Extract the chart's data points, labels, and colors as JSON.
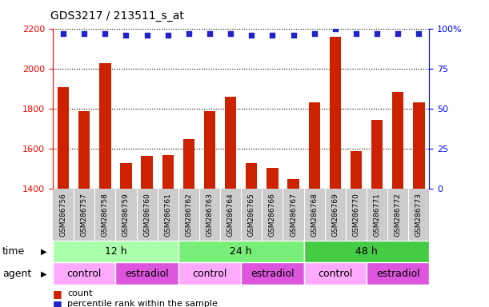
{
  "title": "GDS3217 / 213511_s_at",
  "samples": [
    "GSM286756",
    "GSM286757",
    "GSM286758",
    "GSM286759",
    "GSM286760",
    "GSM286761",
    "GSM286762",
    "GSM286763",
    "GSM286764",
    "GSM286765",
    "GSM286766",
    "GSM286767",
    "GSM286768",
    "GSM286769",
    "GSM286770",
    "GSM286771",
    "GSM286772",
    "GSM286773"
  ],
  "counts": [
    1910,
    1790,
    2030,
    1530,
    1565,
    1570,
    1650,
    1790,
    1860,
    1530,
    1505,
    1450,
    1835,
    2160,
    1590,
    1745,
    1885,
    1835
  ],
  "percentiles": [
    97,
    97,
    97,
    96,
    96,
    96,
    97,
    97,
    97,
    96,
    96,
    96,
    97,
    100,
    97,
    97,
    97,
    97
  ],
  "bar_color": "#cc2200",
  "dot_color": "#2222cc",
  "ylim_left": [
    1400,
    2200
  ],
  "ylim_right": [
    0,
    100
  ],
  "left_ticks": [
    1400,
    1600,
    1800,
    2000,
    2200
  ],
  "right_ticks": [
    0,
    25,
    50,
    75,
    100
  ],
  "right_tick_labels": [
    "0",
    "25",
    "50",
    "75",
    "100%"
  ],
  "time_groups": [
    {
      "label": "12 h",
      "start": 0,
      "end": 6,
      "color": "#aaffaa"
    },
    {
      "label": "24 h",
      "start": 6,
      "end": 12,
      "color": "#77ee77"
    },
    {
      "label": "48 h",
      "start": 12,
      "end": 18,
      "color": "#44cc44"
    }
  ],
  "agent_groups": [
    {
      "label": "control",
      "start": 0,
      "end": 3,
      "color": "#ffaaff"
    },
    {
      "label": "estradiol",
      "start": 3,
      "end": 6,
      "color": "#dd55dd"
    },
    {
      "label": "control",
      "start": 6,
      "end": 9,
      "color": "#ffaaff"
    },
    {
      "label": "estradiol",
      "start": 9,
      "end": 12,
      "color": "#dd55dd"
    },
    {
      "label": "control",
      "start": 12,
      "end": 15,
      "color": "#ffaaff"
    },
    {
      "label": "estradiol",
      "start": 15,
      "end": 18,
      "color": "#dd55dd"
    }
  ],
  "xtick_bg": "#cccccc",
  "fig_bg": "#ffffff",
  "left_axis_color": "red",
  "right_axis_color": "blue",
  "grid_linestyle": "dotted",
  "grid_color": "#000000",
  "title_fontsize": 10,
  "bar_width": 0.55,
  "dot_size": 22,
  "sample_fontsize": 6.5,
  "row_fontsize": 9,
  "legend_fontsize": 8,
  "legend_square_fontsize": 9
}
